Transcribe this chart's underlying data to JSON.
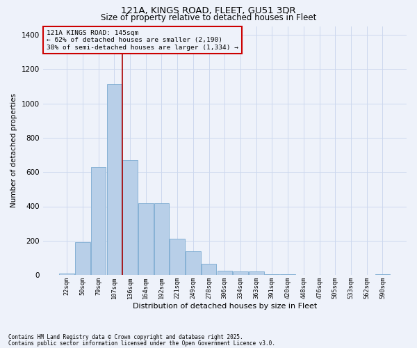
{
  "title1": "121A, KINGS ROAD, FLEET, GU51 3DR",
  "title2": "Size of property relative to detached houses in Fleet",
  "xlabel": "Distribution of detached houses by size in Fleet",
  "ylabel": "Number of detached properties",
  "categories": [
    "22sqm",
    "50sqm",
    "79sqm",
    "107sqm",
    "136sqm",
    "164sqm",
    "192sqm",
    "221sqm",
    "249sqm",
    "278sqm",
    "306sqm",
    "334sqm",
    "363sqm",
    "391sqm",
    "420sqm",
    "448sqm",
    "476sqm",
    "505sqm",
    "533sqm",
    "562sqm",
    "590sqm"
  ],
  "values": [
    10,
    190,
    630,
    1110,
    670,
    420,
    420,
    210,
    140,
    65,
    25,
    20,
    20,
    5,
    5,
    0,
    0,
    0,
    0,
    0,
    5
  ],
  "bar_color": "#b8cfe8",
  "bar_edge_color": "#7aaad0",
  "bg_color": "#eef2fa",
  "grid_color": "#ccd8ee",
  "vline_x_index": 3,
  "vline_color": "#aa0000",
  "annotation_title": "121A KINGS ROAD: 145sqm",
  "annotation_line1": "← 62% of detached houses are smaller (2,190)",
  "annotation_line2": "38% of semi-detached houses are larger (1,334) →",
  "annotation_box_color": "#cc0000",
  "footnote1": "Contains HM Land Registry data © Crown copyright and database right 2025.",
  "footnote2": "Contains public sector information licensed under the Open Government Licence v3.0.",
  "ylim": [
    0,
    1450
  ],
  "yticks": [
    0,
    200,
    400,
    600,
    800,
    1000,
    1200,
    1400
  ]
}
